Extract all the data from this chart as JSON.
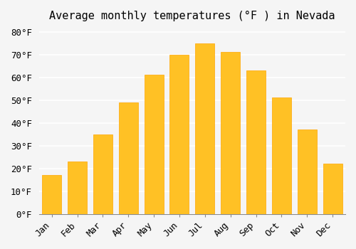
{
  "title": "Average monthly temperatures (°F ) in Nevada",
  "months": [
    "Jan",
    "Feb",
    "Mar",
    "Apr",
    "May",
    "Jun",
    "Jul",
    "Aug",
    "Sep",
    "Oct",
    "Nov",
    "Dec"
  ],
  "values": [
    17,
    23,
    35,
    49,
    61,
    70,
    75,
    71,
    63,
    51,
    37,
    22
  ],
  "bar_color": "#FFC125",
  "bar_edge_color": "#FFA500",
  "background_color": "#F5F5F5",
  "grid_color": "#FFFFFF",
  "ylim": [
    0,
    82
  ],
  "yticks": [
    0,
    10,
    20,
    30,
    40,
    50,
    60,
    70,
    80
  ],
  "ytick_labels": [
    "0°F",
    "10°F",
    "20°F",
    "30°F",
    "40°F",
    "50°F",
    "60°F",
    "70°F",
    "80°F"
  ],
  "title_fontsize": 11,
  "tick_fontsize": 9,
  "font_family": "monospace"
}
